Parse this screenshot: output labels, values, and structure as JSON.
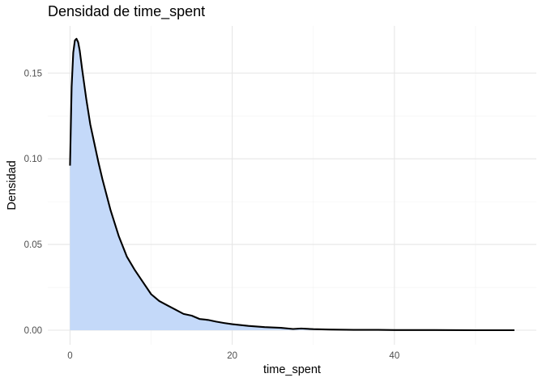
{
  "chart_data": {
    "type": "area",
    "title": "Densidad de time_spent",
    "xlabel": "time_spent",
    "ylabel": "Densidad",
    "xlim": [
      -2.74,
      57.5
    ],
    "ylim": [
      -0.0085,
      0.1775
    ],
    "x_ticks": [
      0,
      20,
      40
    ],
    "x_tick_labels": [
      "0",
      "20",
      "40"
    ],
    "x_minor_ticks": [
      10,
      30,
      50
    ],
    "y_ticks": [
      0.0,
      0.05,
      0.1,
      0.15
    ],
    "y_tick_labels": [
      "0.00",
      "0.05",
      "0.10",
      "0.15"
    ],
    "y_minor_ticks": [
      0.025,
      0.075,
      0.125
    ],
    "grid": true,
    "colors": {
      "fill": "#c4d9f9",
      "line": "#000000",
      "grid_major": "#e6e6e6",
      "grid_minor": "#f2f2f2"
    },
    "x": [
      0,
      0.2,
      0.4,
      0.6,
      0.8,
      1.0,
      1.2,
      1.5,
      2.0,
      2.5,
      3.0,
      3.5,
      4.0,
      5.0,
      6.0,
      7.0,
      8.0,
      9.0,
      10.0,
      11.0,
      12.0,
      13.0,
      14.0,
      15.0,
      16.0,
      17.0,
      18.0,
      19.0,
      20.0,
      22.0,
      24.0,
      26.0,
      27.5,
      28.5,
      30.0,
      32.0,
      35.0,
      38.0,
      40.0,
      45.0,
      50.0,
      54.8
    ],
    "y": [
      0.096,
      0.142,
      0.162,
      0.169,
      0.17,
      0.168,
      0.163,
      0.152,
      0.135,
      0.12,
      0.109,
      0.098,
      0.088,
      0.07,
      0.055,
      0.043,
      0.035,
      0.028,
      0.021,
      0.017,
      0.0145,
      0.012,
      0.0095,
      0.0085,
      0.0065,
      0.006,
      0.005,
      0.0042,
      0.0035,
      0.0025,
      0.0018,
      0.0014,
      0.0007,
      0.001,
      0.0006,
      0.0004,
      0.0002,
      0.0002,
      0.0001,
      0.0001,
      0.0,
      0.0
    ]
  }
}
